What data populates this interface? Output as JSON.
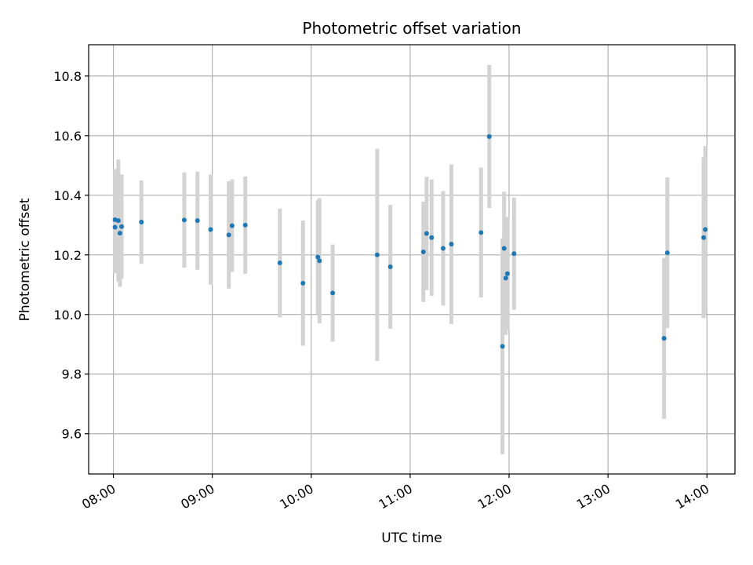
{
  "chart_data": {
    "type": "scatter",
    "title": "Photometric offset variation",
    "xlabel": "UTC time",
    "ylabel": "Photometric offset",
    "xlim": [
      "07:45",
      "14:17"
    ],
    "ylim": [
      9.465,
      10.905
    ],
    "x_ticks": [
      "08:00",
      "09:00",
      "10:00",
      "11:00",
      "12:00",
      "13:00",
      "14:00"
    ],
    "y_ticks": [
      "9.6",
      "9.8",
      "10.0",
      "10.2",
      "10.4",
      "10.6",
      "10.8"
    ],
    "grid": true,
    "marker_color": "#1f77b4",
    "errorbar_color": "#d3d3d3",
    "points": [
      {
        "time": "08:01",
        "y": 10.318,
        "yerr": 0.17
      },
      {
        "time": "08:01",
        "y": 10.293,
        "yerr": 0.155
      },
      {
        "time": "08:03",
        "y": 10.315,
        "yerr": 0.205
      },
      {
        "time": "08:04",
        "y": 10.273,
        "yerr": 0.18
      },
      {
        "time": "08:05",
        "y": 10.295,
        "yerr": 0.175
      },
      {
        "time": "08:17",
        "y": 10.31,
        "yerr": 0.14
      },
      {
        "time": "08:43",
        "y": 10.317,
        "yerr": 0.16
      },
      {
        "time": "08:51",
        "y": 10.315,
        "yerr": 0.165
      },
      {
        "time": "08:59",
        "y": 10.285,
        "yerr": 0.185
      },
      {
        "time": "09:10",
        "y": 10.267,
        "yerr": 0.18
      },
      {
        "time": "09:12",
        "y": 10.298,
        "yerr": 0.155
      },
      {
        "time": "09:20",
        "y": 10.3,
        "yerr": 0.163
      },
      {
        "time": "09:41",
        "y": 10.173,
        "yerr": 0.182
      },
      {
        "time": "09:55",
        "y": 10.105,
        "yerr": 0.21
      },
      {
        "time": "10:04",
        "y": 10.193,
        "yerr": 0.19
      },
      {
        "time": "10:05",
        "y": 10.18,
        "yerr": 0.21
      },
      {
        "time": "10:13",
        "y": 10.072,
        "yerr": 0.163
      },
      {
        "time": "10:40",
        "y": 10.2,
        "yerr": 0.356
      },
      {
        "time": "10:48",
        "y": 10.16,
        "yerr": 0.208
      },
      {
        "time": "11:08",
        "y": 10.21,
        "yerr": 0.168
      },
      {
        "time": "11:10",
        "y": 10.272,
        "yerr": 0.19
      },
      {
        "time": "11:13",
        "y": 10.258,
        "yerr": 0.195
      },
      {
        "time": "11:20",
        "y": 10.222,
        "yerr": 0.192
      },
      {
        "time": "11:25",
        "y": 10.236,
        "yerr": 0.268
      },
      {
        "time": "11:43",
        "y": 10.275,
        "yerr": 0.218
      },
      {
        "time": "11:48",
        "y": 10.597,
        "yerr": 0.24
      },
      {
        "time": "11:56",
        "y": 9.893,
        "yerr": 0.362
      },
      {
        "time": "11:57",
        "y": 10.222,
        "yerr": 0.19
      },
      {
        "time": "11:58",
        "y": 10.122,
        "yerr": 0.19
      },
      {
        "time": "11:59",
        "y": 10.137,
        "yerr": 0.19
      },
      {
        "time": "12:03",
        "y": 10.204,
        "yerr": 0.188
      },
      {
        "time": "13:34",
        "y": 9.92,
        "yerr": 0.27
      },
      {
        "time": "13:36",
        "y": 10.207,
        "yerr": 0.253
      },
      {
        "time": "13:58",
        "y": 10.258,
        "yerr": 0.27
      },
      {
        "time": "13:59",
        "y": 10.285,
        "yerr": 0.28
      }
    ]
  }
}
